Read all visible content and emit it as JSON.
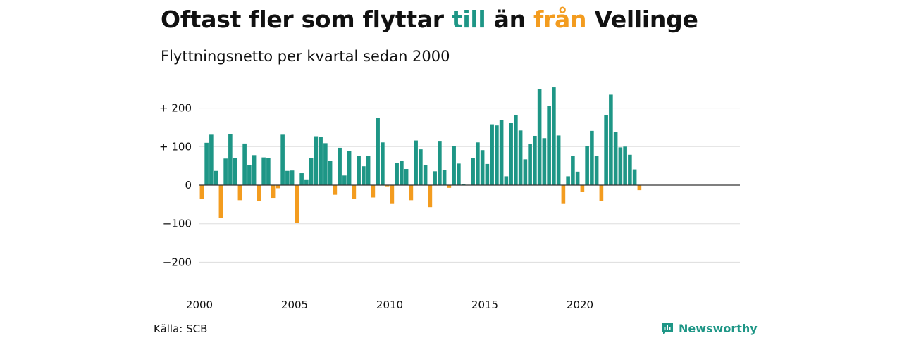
{
  "header": {
    "title_part1": "Oftast fler som flyttar ",
    "title_till": "till",
    "title_part2": " än ",
    "title_fran": "från",
    "title_part3": " Vellinge",
    "subtitle": "Flyttningsnetto per kvartal sedan 2000"
  },
  "footer": {
    "source": "Källa: SCB",
    "brand": "Newsworthy"
  },
  "colors": {
    "positive": "#1e9686",
    "negative": "#f39c1f",
    "grid": "#dddddd",
    "baseline": "#333333"
  },
  "chart_data": {
    "type": "bar",
    "title": "Oftast fler som flyttar till än från Vellinge",
    "subtitle": "Flyttningsnetto per kvartal sedan 2000",
    "x_start_year": 2000,
    "quarters_per_year": 4,
    "x_tick_labels": [
      "2000",
      "2005",
      "2010",
      "2015",
      "2020"
    ],
    "y_ticks": [
      {
        "value": 200,
        "label": "+ 200"
      },
      {
        "value": 100,
        "label": "+ 100"
      },
      {
        "value": 0,
        "label": "0"
      },
      {
        "value": -100,
        "label": "−100"
      },
      {
        "value": -200,
        "label": "−200"
      }
    ],
    "ylim": [
      -230,
      265
    ],
    "grid": true,
    "values": [
      -35,
      110,
      131,
      37,
      -85,
      69,
      133,
      70,
      -39,
      108,
      52,
      78,
      -41,
      72,
      70,
      -33,
      -8,
      131,
      37,
      38,
      -98,
      31,
      15,
      70,
      127,
      126,
      109,
      63,
      -25,
      97,
      25,
      88,
      -36,
      75,
      49,
      76,
      -32,
      175,
      111,
      -3,
      -47,
      58,
      64,
      42,
      -39,
      116,
      93,
      52,
      -57,
      36,
      115,
      39,
      -7,
      101,
      56,
      3,
      1,
      71,
      111,
      91,
      55,
      158,
      155,
      169,
      23,
      162,
      182,
      142,
      67,
      106,
      128,
      250,
      122,
      205,
      254,
      129,
      -47,
      23,
      75,
      35,
      -17,
      101,
      141,
      76,
      -41,
      182,
      235,
      138,
      98,
      100,
      79,
      41,
      -13
    ]
  }
}
